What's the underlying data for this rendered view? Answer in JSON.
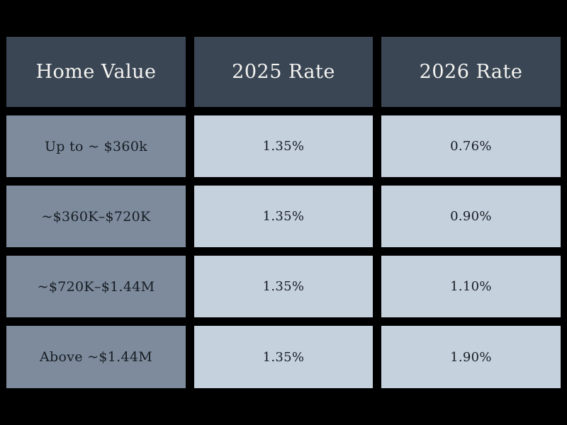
{
  "colors": {
    "background": "#000000",
    "header_bg": "#3a4654",
    "label_bg": "#7d8b9c",
    "value_bg": "#c6d1de",
    "header_text": "#f4f3f0",
    "cell_text": "#171d24"
  },
  "chart_data": {
    "type": "table",
    "columns": [
      "Home Value",
      "2025 Rate",
      "2026 Rate"
    ],
    "rows": [
      [
        "Up to ~ $360k",
        "1.35%",
        "0.76%"
      ],
      [
        "~$360K–$720K",
        "1.35%",
        "0.90%"
      ],
      [
        "~$720K–$1.44M",
        "1.35%",
        "1.10%"
      ],
      [
        "Above ~$1.44M",
        "1.35%",
        "1.90%"
      ]
    ]
  }
}
